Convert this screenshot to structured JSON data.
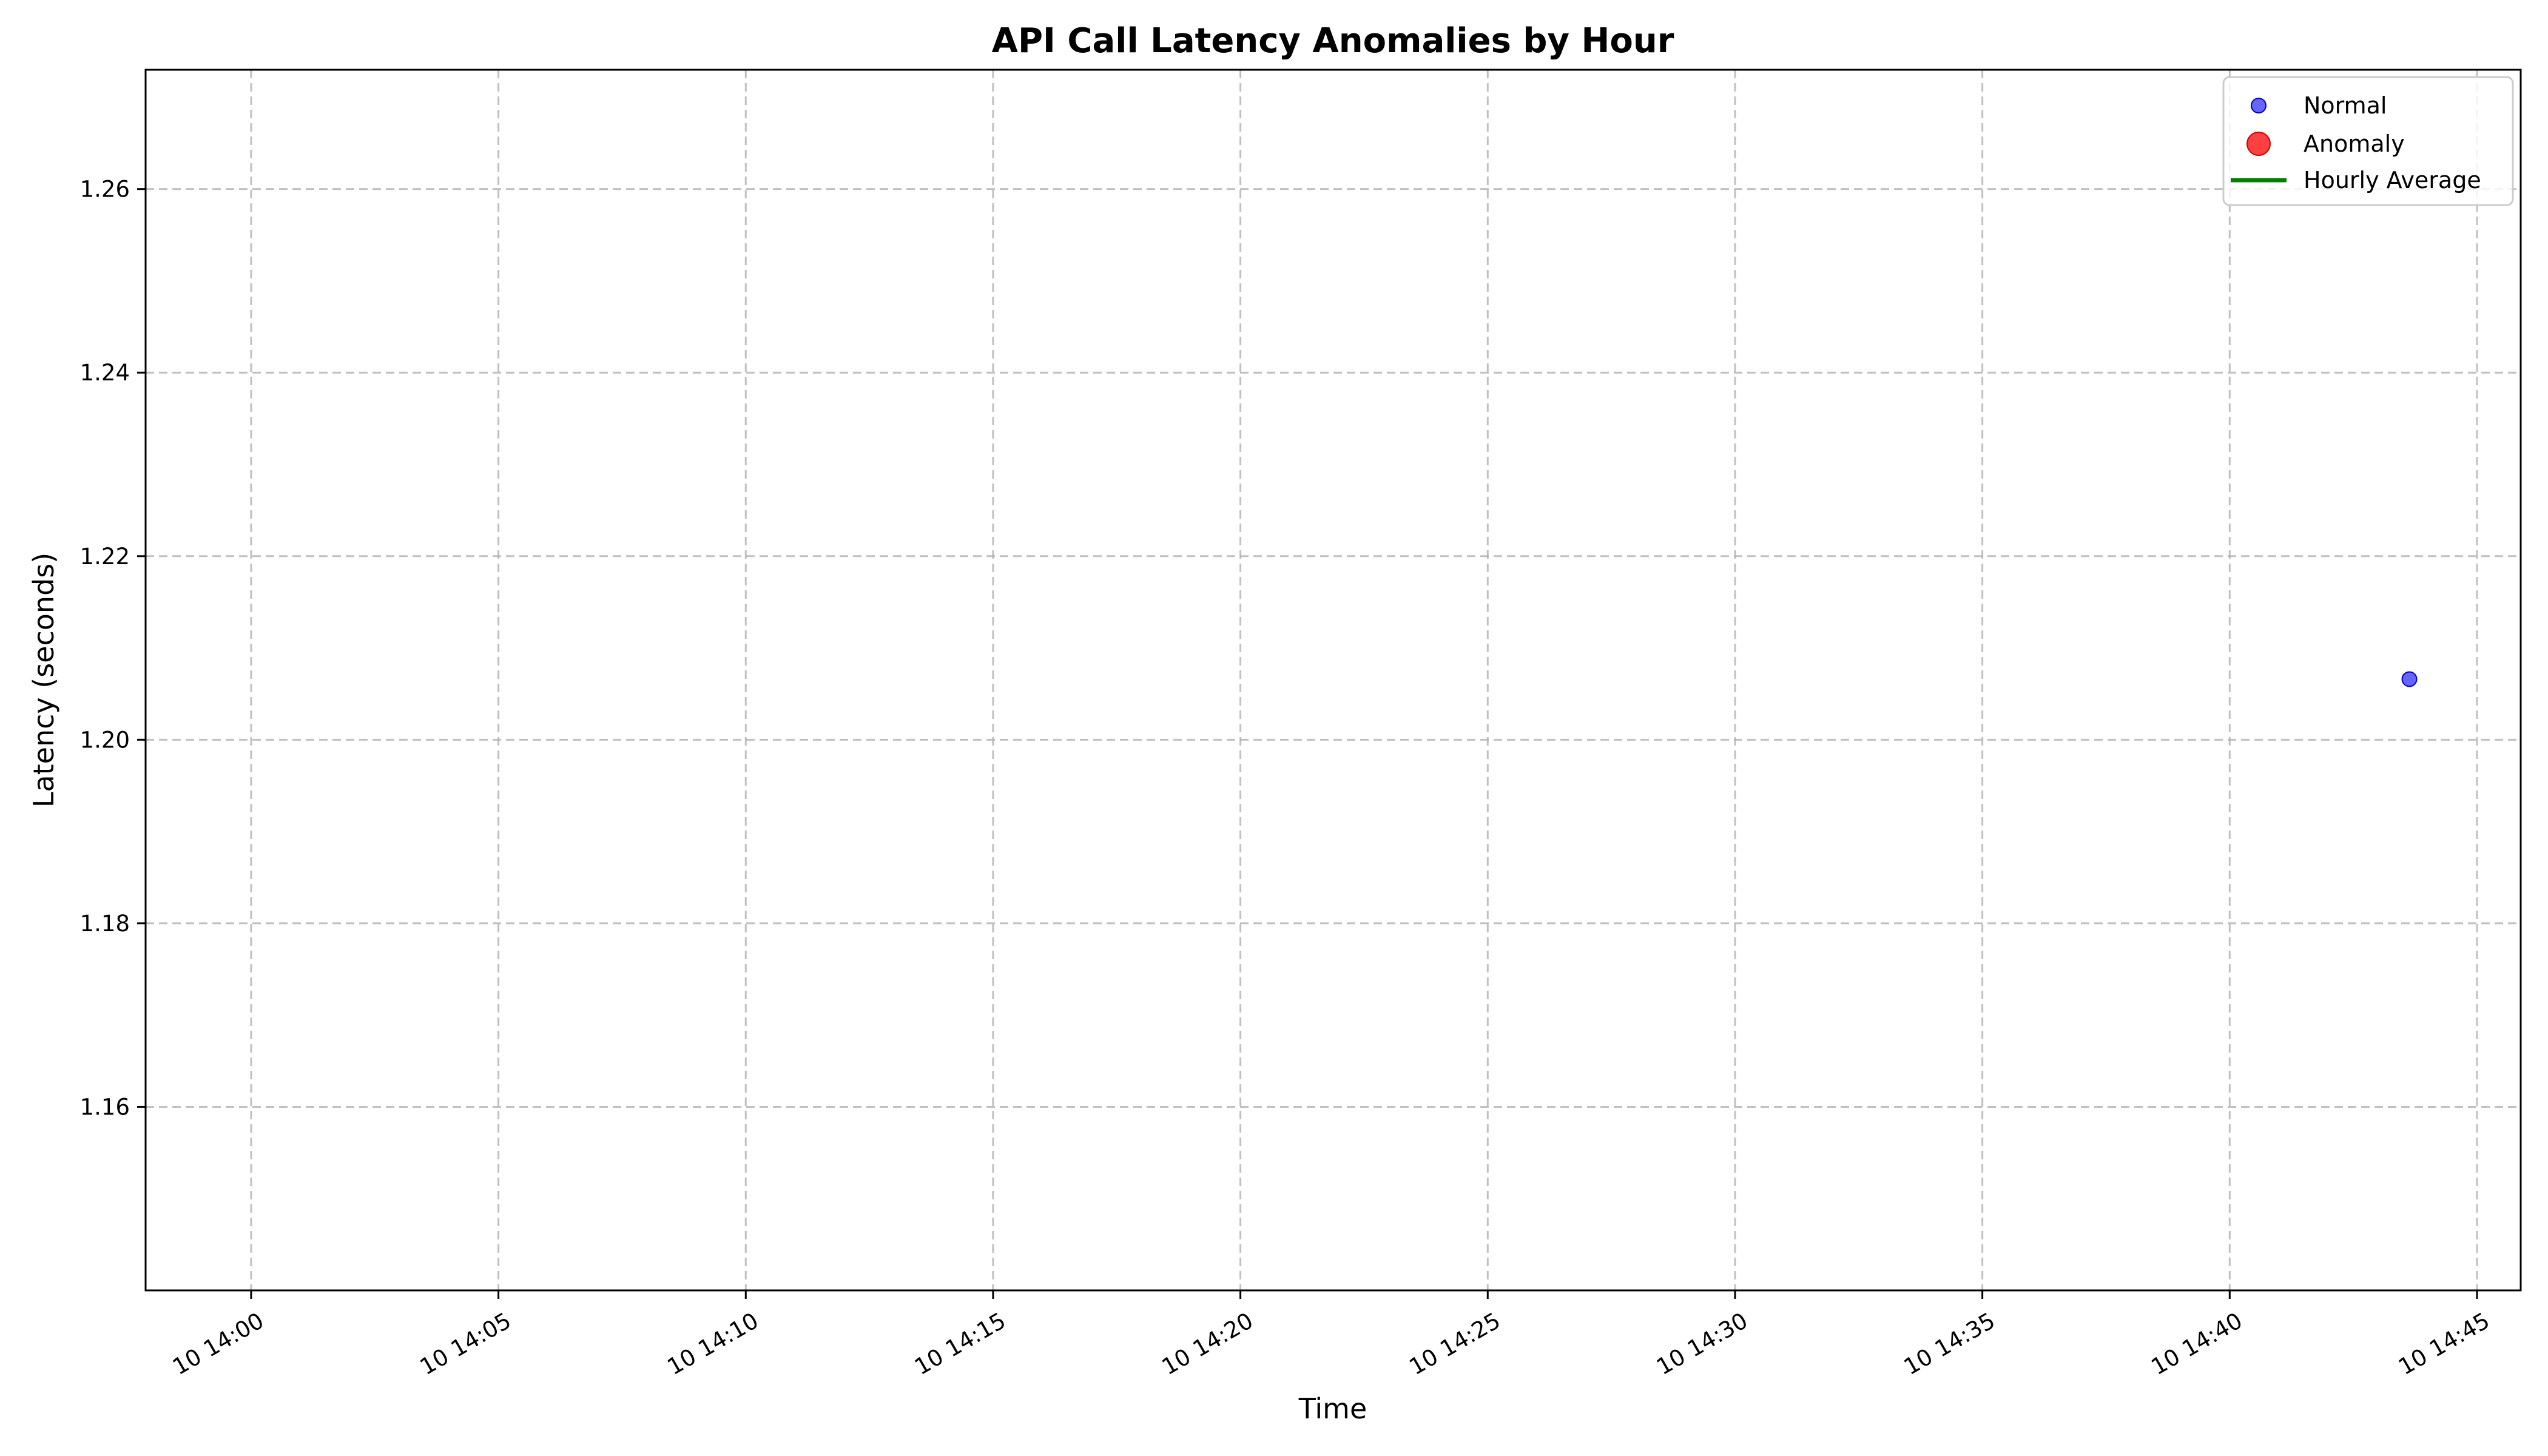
{
  "chart_data": {
    "type": "scatter",
    "title": "API Call Latency Anomalies by Hour",
    "xlabel": "Time",
    "ylabel": "Latency (seconds)",
    "x_unit": "HH:MM on day 10",
    "xlim": [
      "13:57:52",
      "14:45:53"
    ],
    "ylim": [
      1.14,
      1.273
    ],
    "x_ticks": [
      {
        "value": "14:00",
        "label": "10 14:00"
      },
      {
        "value": "14:05",
        "label": "10 14:05"
      },
      {
        "value": "14:10",
        "label": "10 14:10"
      },
      {
        "value": "14:15",
        "label": "10 14:15"
      },
      {
        "value": "14:20",
        "label": "10 14:20"
      },
      {
        "value": "14:25",
        "label": "10 14:25"
      },
      {
        "value": "14:30",
        "label": "10 14:30"
      },
      {
        "value": "14:35",
        "label": "10 14:35"
      },
      {
        "value": "14:40",
        "label": "10 14:40"
      },
      {
        "value": "14:45",
        "label": "10 14:45"
      }
    ],
    "y_ticks": [
      1.16,
      1.18,
      1.2,
      1.22,
      1.24,
      1.26
    ],
    "y_tick_labels": [
      "1.16",
      "1.18",
      "1.20",
      "1.22",
      "1.24",
      "1.26"
    ],
    "grid": true,
    "legend_position": "top-right",
    "series": [
      {
        "name": "Normal",
        "marker": "circle",
        "color": "#0000ff",
        "points": [
          {
            "x": "14:43:38",
            "y": 1.2066
          }
        ]
      },
      {
        "name": "Anomaly",
        "marker": "circle",
        "color": "#ff0000",
        "points": []
      },
      {
        "name": "Hourly Average",
        "marker": "line",
        "color": "#008000",
        "points": []
      }
    ]
  }
}
